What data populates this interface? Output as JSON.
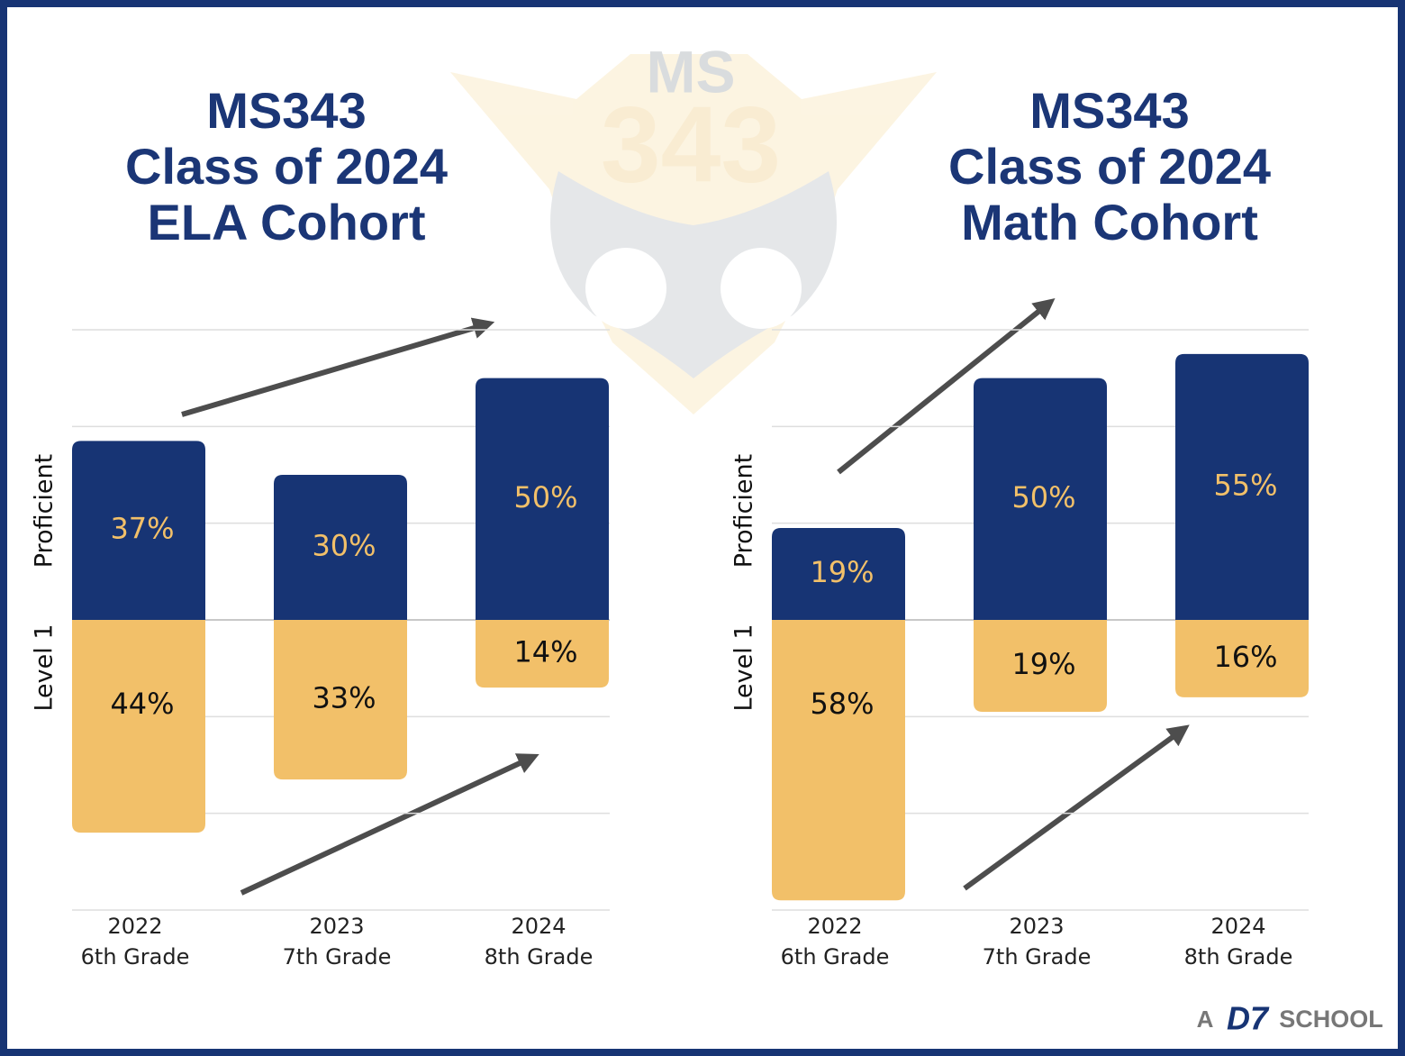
{
  "watermark": {
    "top": "MS",
    "number": "343"
  },
  "footer": {
    "prefix": "A",
    "brand": "D7",
    "suffix": "SCHOOL"
  },
  "chart_data": [
    {
      "type": "diverging-bar",
      "title": [
        "MS343",
        "Class of 2024",
        "ELA Cohort"
      ],
      "categories": [
        "2022",
        "2023",
        "2024"
      ],
      "category_sublabels": [
        "6th Grade",
        "7th Grade",
        "8th Grade"
      ],
      "series": [
        {
          "name": "Proficient",
          "color": "#173474",
          "label_color": "#f2c069",
          "values": [
            37,
            30,
            50
          ],
          "value_labels": [
            "37%",
            "30%",
            "50%"
          ]
        },
        {
          "name": "Level 1",
          "color": "#f2c069",
          "label_color": "#111111",
          "values": [
            -44,
            -33,
            -14
          ],
          "value_labels": [
            "44%",
            "33%",
            "14%"
          ]
        }
      ],
      "ylim": [
        -60,
        60
      ],
      "yticks": [
        -60,
        -40,
        -20,
        0,
        20,
        40,
        60
      ],
      "grid": true
    },
    {
      "type": "diverging-bar",
      "title": [
        "MS343",
        "Class of 2024",
        "Math Cohort"
      ],
      "categories": [
        "2022",
        "2023",
        "2024"
      ],
      "category_sublabels": [
        "6th Grade",
        "7th Grade",
        "8th Grade"
      ],
      "series": [
        {
          "name": "Proficient",
          "color": "#173474",
          "label_color": "#f2c069",
          "values": [
            19,
            50,
            55
          ],
          "value_labels": [
            "19%",
            "50%",
            "55%"
          ]
        },
        {
          "name": "Level 1",
          "color": "#f2c069",
          "label_color": "#111111",
          "values": [
            -58,
            -19,
            -16
          ],
          "value_labels": [
            "58%",
            "19%",
            "16%"
          ]
        }
      ],
      "ylim": [
        -60,
        60
      ],
      "yticks": [
        -60,
        -40,
        -20,
        0,
        20,
        40,
        60
      ],
      "grid": true
    }
  ]
}
